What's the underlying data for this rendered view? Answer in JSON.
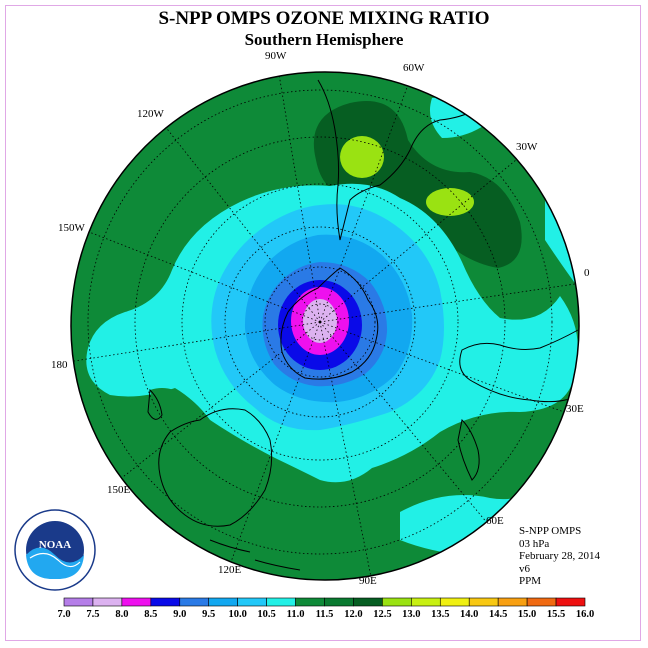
{
  "header": {
    "title": "S-NPP OMPS OZONE MIXING RATIO",
    "subtitle": "Southern Hemisphere"
  },
  "info": {
    "instrument": "S-NPP OMPS",
    "level": "03 hPa",
    "date": "February 28, 2014",
    "version": "v6",
    "units": "PPM"
  },
  "map": {
    "projection": "polar stereographic",
    "center": "South Pole",
    "longitude_labels": [
      "90W",
      "60W",
      "30W",
      "0",
      "30E",
      "60E",
      "90E",
      "120E",
      "150E",
      "180",
      "150W",
      "120W"
    ],
    "logo": "NOAA"
  },
  "colorbar": {
    "ticks": [
      "7.0",
      "7.5",
      "8.0",
      "8.5",
      "9.0",
      "9.5",
      "10.0",
      "10.5",
      "11.0",
      "11.5",
      "12.0",
      "12.5",
      "13.0",
      "13.5",
      "14.0",
      "14.5",
      "15.0",
      "15.5",
      "16.0"
    ],
    "colors": [
      "#b57ee8",
      "#dcb2f0",
      "#ee10ee",
      "#0a0ae8",
      "#2a7ae6",
      "#12a8f0",
      "#22c8f8",
      "#22f0e6",
      "#0e8a38",
      "#0a7a30",
      "#065e22",
      "#9ae212",
      "#c8f012",
      "#f0f012",
      "#f8c812",
      "#f8a012",
      "#f06a12",
      "#ee1010",
      "#7a4a30"
    ]
  },
  "colors": {
    "background_field": "#0e8a38",
    "land_outline": "#000000",
    "frame": "#e0a8e6"
  }
}
